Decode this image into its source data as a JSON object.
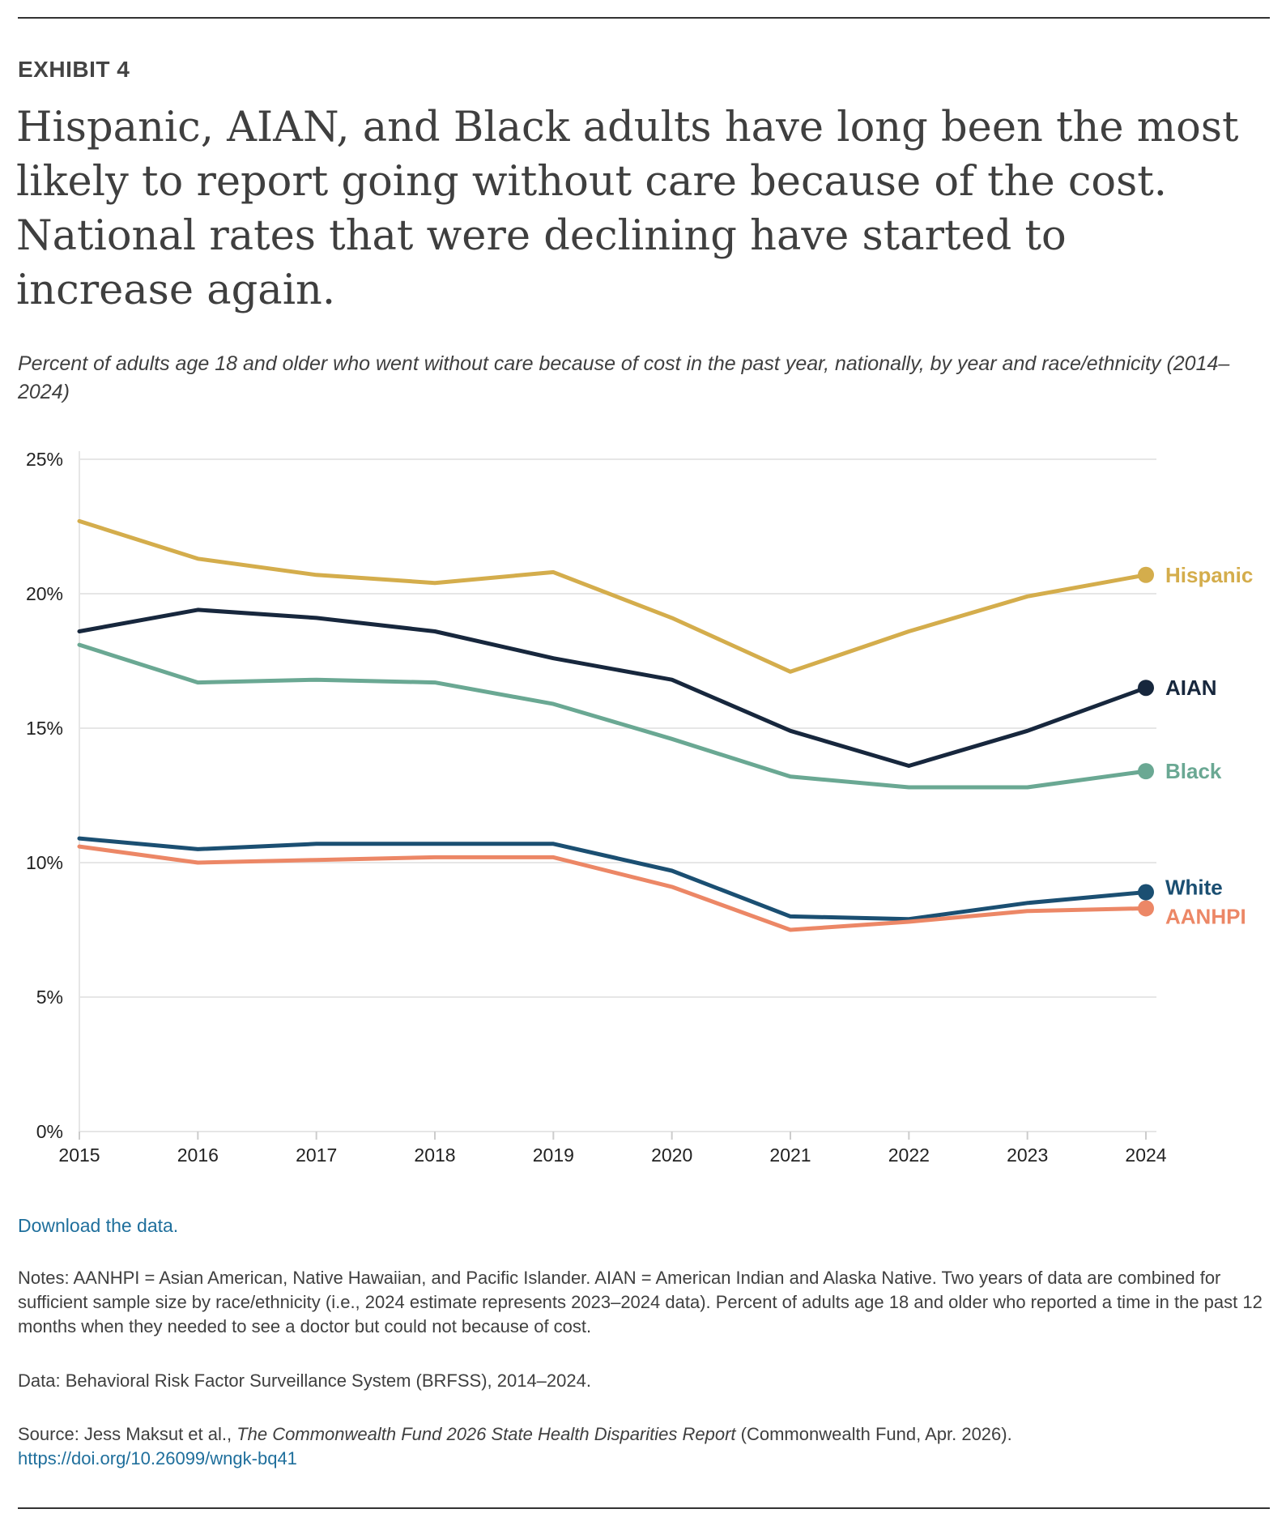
{
  "exhibit_label": "EXHIBIT 4",
  "title": "Hispanic, AIAN, and Black adults have long been the most likely to report going without care because of the cost. National rates that were declining have started to increase again.",
  "subtitle": "Percent of adults age 18 and older who went without care because of cost in the past year, nationally, by year and race/ethnicity (2014–2024)",
  "download_link": "Download the data.",
  "notes": "Notes: AANHPI = Asian American, Native Hawaiian, and Pacific Islander. AIAN = American Indian and Alaska Native. Two years of data are combined for sufficient sample size by race/ethnicity (i.e., 2024 estimate represents 2023–2024 data). Percent of adults age 18 and older who reported a time in the past 12 months when they needed to see a doctor but could not because of cost.",
  "data_source": "Data: Behavioral Risk Factor Surveillance System (BRFSS), 2014–2024.",
  "source": {
    "prefix": "Source: Jess Maksut et al., ",
    "publication": "The Commonwealth Fund 2026 State Health Disparities Report",
    "suffix": " (Commonwealth Fund, Apr. 2026).",
    "doi": "https://doi.org/10.26099/wngk-bq41"
  },
  "chart_data": {
    "type": "line",
    "x": [
      2015,
      2016,
      2017,
      2018,
      2019,
      2020,
      2021,
      2022,
      2023,
      2024
    ],
    "ylim": [
      0,
      25
    ],
    "yticks": [
      0,
      5,
      10,
      15,
      20,
      25
    ],
    "ytick_labels": [
      "0%",
      "5%",
      "10%",
      "15%",
      "20%",
      "25%"
    ],
    "grid": true,
    "legend": "end-of-line labels",
    "series": [
      {
        "name": "Hispanic",
        "color": "#d4ad4c",
        "values": [
          22.7,
          21.3,
          20.7,
          20.4,
          20.8,
          19.1,
          17.1,
          18.6,
          19.9,
          20.7
        ]
      },
      {
        "name": "AIAN",
        "color": "#17273d",
        "values": [
          18.6,
          19.4,
          19.1,
          18.6,
          17.6,
          16.8,
          14.9,
          13.6,
          14.9,
          16.5
        ]
      },
      {
        "name": "Black",
        "color": "#6aa893",
        "values": [
          18.1,
          16.7,
          16.8,
          16.7,
          15.9,
          14.6,
          13.2,
          12.8,
          12.8,
          13.4
        ]
      },
      {
        "name": "White",
        "color": "#1b4f72",
        "values": [
          10.9,
          10.5,
          10.7,
          10.7,
          10.7,
          9.7,
          8.0,
          7.9,
          8.5,
          8.9
        ]
      },
      {
        "name": "AANHPI",
        "color": "#ec8766",
        "values": [
          10.6,
          10.0,
          10.1,
          10.2,
          10.2,
          9.1,
          7.5,
          7.8,
          8.2,
          8.3
        ]
      }
    ]
  }
}
